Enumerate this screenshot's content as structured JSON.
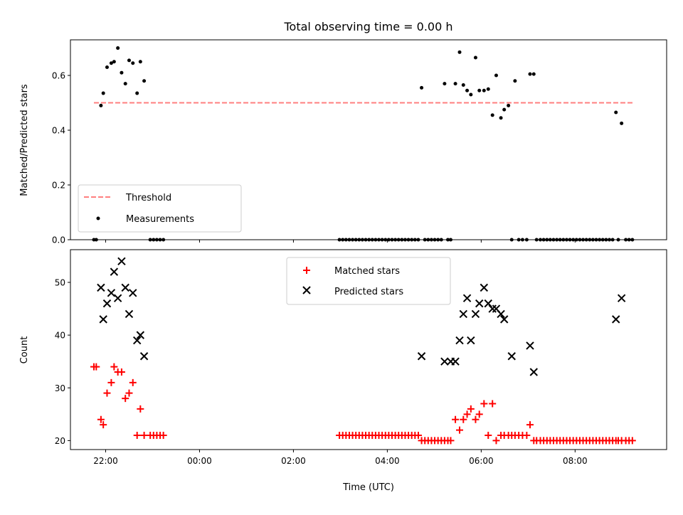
{
  "chart_data": [
    {
      "type": "scatter",
      "title": "Total observing time = 0.00 h",
      "ylabel": "Matched/Predicted stars",
      "ylim": [
        0,
        0.73
      ],
      "xlim": [
        -2.75,
        9.95
      ],
      "grid": false,
      "legend_placement": "lower-left",
      "yticks": [
        {
          "v": 0.0,
          "label": "0.0"
        },
        {
          "v": 0.2,
          "label": "0.2"
        },
        {
          "v": 0.4,
          "label": "0.4"
        },
        {
          "v": 0.6,
          "label": "0.6"
        }
      ],
      "threshold": {
        "name": "Threshold",
        "value": 0.5,
        "x_range": [
          -2.25,
          9.25
        ],
        "color": "#ff7f7f"
      },
      "series": [
        {
          "name": "Measurements",
          "color": "#000000",
          "marker": "dot",
          "x": [
            -2.25,
            -2.2,
            -2.1,
            -2.05,
            -1.97,
            -1.88,
            -1.82,
            -1.74,
            -1.66,
            -1.58,
            -1.5,
            -1.42,
            -1.33,
            -1.26,
            -1.18,
            -1.05,
            -0.98,
            -0.91,
            -0.84,
            -0.77,
            2.98,
            3.05,
            3.12,
            3.19,
            3.26,
            3.33,
            3.4,
            3.47,
            3.54,
            3.61,
            3.68,
            3.75,
            3.82,
            3.89,
            3.96,
            4.03,
            4.1,
            4.17,
            4.24,
            4.31,
            4.38,
            4.45,
            4.52,
            4.59,
            4.66,
            4.73,
            4.8,
            4.87,
            4.94,
            5.01,
            5.08,
            5.15,
            5.22,
            5.29,
            5.35,
            5.45,
            5.54,
            5.62,
            5.7,
            5.78,
            5.88,
            5.96,
            6.06,
            6.15,
            6.24,
            6.32,
            6.42,
            6.49,
            6.58,
            6.65,
            6.72,
            6.8,
            6.88,
            6.97,
            7.04,
            7.12,
            7.18,
            7.26,
            7.33,
            7.4,
            7.47,
            7.54,
            7.61,
            7.68,
            7.75,
            7.82,
            7.89,
            7.96,
            8.03,
            8.1,
            8.17,
            8.24,
            8.31,
            8.38,
            8.45,
            8.52,
            8.59,
            8.66,
            8.73,
            8.8,
            8.87,
            8.92,
            8.99,
            9.08,
            9.15,
            9.22
          ],
          "y": [
            0.0,
            0.0,
            0.49,
            0.535,
            0.63,
            0.645,
            0.65,
            0.7,
            0.61,
            0.57,
            0.655,
            0.645,
            0.535,
            0.65,
            0.58,
            0.0,
            0.0,
            0.0,
            0.0,
            0.0,
            0.0,
            0.0,
            0.0,
            0.0,
            0.0,
            0.0,
            0.0,
            0.0,
            0.0,
            0.0,
            0.0,
            0.0,
            0.0,
            0.0,
            0.0,
            0.0,
            0.0,
            0.0,
            0.0,
            0.0,
            0.0,
            0.0,
            0.0,
            0.0,
            0.0,
            0.555,
            0.0,
            0.0,
            0.0,
            0.0,
            0.0,
            0.0,
            0.57,
            0.0,
            0.0,
            0.57,
            0.685,
            0.565,
            0.545,
            0.53,
            0.665,
            0.545,
            0.545,
            0.55,
            0.455,
            0.6,
            0.445,
            0.475,
            0.49,
            0.0,
            0.58,
            0.0,
            0.0,
            0.0,
            0.605,
            0.605,
            0.0,
            0.0,
            0.0,
            0.0,
            0.0,
            0.0,
            0.0,
            0.0,
            0.0,
            0.0,
            0.0,
            0.0,
            0.0,
            0.0,
            0.0,
            0.0,
            0.0,
            0.0,
            0.0,
            0.0,
            0.0,
            0.0,
            0.0,
            0.0,
            0.465,
            0.0,
            0.425,
            0.0,
            0.0,
            0.0
          ]
        }
      ],
      "legend": [
        "Threshold",
        "Measurements"
      ]
    },
    {
      "type": "scatter",
      "xlabel": "Time (UTC)",
      "ylabel": "Count",
      "ylim": [
        18.3,
        56.2
      ],
      "xlim": [
        -2.75,
        9.95
      ],
      "grid": false,
      "legend_placement": "top-center",
      "yticks": [
        {
          "v": 20,
          "label": "20"
        },
        {
          "v": 30,
          "label": "30"
        },
        {
          "v": 40,
          "label": "40"
        },
        {
          "v": 50,
          "label": "50"
        }
      ],
      "xticks": [
        {
          "v": -2,
          "label": "22:00"
        },
        {
          "v": 0,
          "label": "00:00"
        },
        {
          "v": 2,
          "label": "02:00"
        },
        {
          "v": 4,
          "label": "04:00"
        },
        {
          "v": 6,
          "label": "06:00"
        },
        {
          "v": 8,
          "label": "08:00"
        }
      ],
      "series": [
        {
          "name": "Matched stars",
          "color": "#ff0000",
          "marker": "plus",
          "x": [
            -2.25,
            -2.2,
            -2.1,
            -2.05,
            -1.97,
            -1.88,
            -1.82,
            -1.74,
            -1.66,
            -1.58,
            -1.5,
            -1.42,
            -1.33,
            -1.26,
            -1.18,
            -1.05,
            -0.98,
            -0.91,
            -0.84,
            -0.77,
            2.98,
            3.05,
            3.12,
            3.19,
            3.26,
            3.33,
            3.4,
            3.47,
            3.54,
            3.61,
            3.68,
            3.75,
            3.82,
            3.89,
            3.96,
            4.03,
            4.1,
            4.17,
            4.24,
            4.31,
            4.38,
            4.45,
            4.52,
            4.59,
            4.66,
            4.73,
            4.8,
            4.87,
            4.94,
            5.01,
            5.08,
            5.15,
            5.22,
            5.29,
            5.35,
            5.45,
            5.54,
            5.62,
            5.7,
            5.78,
            5.88,
            5.96,
            6.06,
            6.15,
            6.24,
            6.32,
            6.42,
            6.49,
            6.58,
            6.65,
            6.72,
            6.8,
            6.88,
            6.97,
            7.04,
            7.12,
            7.18,
            7.26,
            7.33,
            7.4,
            7.47,
            7.54,
            7.61,
            7.68,
            7.75,
            7.82,
            7.89,
            7.96,
            8.03,
            8.1,
            8.17,
            8.24,
            8.31,
            8.38,
            8.45,
            8.52,
            8.59,
            8.66,
            8.73,
            8.8,
            8.87,
            8.92,
            8.99,
            9.08,
            9.15,
            9.22
          ],
          "y": [
            34,
            34,
            24,
            23,
            29,
            31,
            34,
            33,
            33,
            28,
            29,
            31,
            21,
            26,
            21,
            21,
            21,
            21,
            21,
            21,
            21,
            21,
            21,
            21,
            21,
            21,
            21,
            21,
            21,
            21,
            21,
            21,
            21,
            21,
            21,
            21,
            21,
            21,
            21,
            21,
            21,
            21,
            21,
            21,
            21,
            20,
            20,
            20,
            20,
            20,
            20,
            20,
            20,
            20,
            20,
            24,
            22,
            24,
            25,
            26,
            24,
            25,
            27,
            21,
            27,
            20,
            21,
            21,
            21,
            21,
            21,
            21,
            21,
            21,
            23,
            20,
            20,
            20,
            20,
            20,
            20,
            20,
            20,
            20,
            20,
            20,
            20,
            20,
            20,
            20,
            20,
            20,
            20,
            20,
            20,
            20,
            20,
            20,
            20,
            20,
            20,
            20,
            20,
            20,
            20,
            20
          ]
        },
        {
          "name": "Predicted stars",
          "color": "#000000",
          "marker": "x",
          "x": [
            -2.1,
            -2.05,
            -1.97,
            -1.88,
            -1.82,
            -1.74,
            -1.66,
            -1.58,
            -1.5,
            -1.42,
            -1.33,
            -1.26,
            -1.18,
            4.73,
            5.22,
            5.35,
            5.45,
            5.54,
            5.62,
            5.7,
            5.78,
            5.88,
            5.96,
            6.06,
            6.15,
            6.24,
            6.32,
            6.42,
            6.49,
            6.65,
            7.04,
            7.12,
            8.87,
            8.99
          ],
          "y": [
            49,
            43,
            46,
            48,
            52,
            47,
            54,
            49,
            44,
            48,
            39,
            40,
            36,
            36,
            35,
            35,
            35,
            39,
            44,
            47,
            39,
            44,
            46,
            49,
            46,
            45,
            45,
            44,
            43,
            36,
            38,
            33,
            43,
            47
          ]
        }
      ],
      "legend": [
        "Matched stars",
        "Predicted stars"
      ]
    }
  ]
}
